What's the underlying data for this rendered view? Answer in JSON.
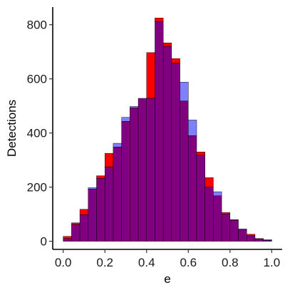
{
  "chart_data": {
    "type": "bar",
    "subtype": "overlaid-histogram",
    "xlabel": "e",
    "ylabel": "Detections",
    "xlim": [
      -0.05,
      1.05
    ],
    "ylim": [
      -30,
      865
    ],
    "xticks": [
      0.0,
      0.2,
      0.4,
      0.6,
      0.8,
      1.0
    ],
    "xtick_labels": [
      "0.0",
      "0.2",
      "0.4",
      "0.6",
      "0.8",
      "1.0"
    ],
    "yticks": [
      0,
      200,
      400,
      600,
      800
    ],
    "ytick_labels": [
      "0",
      "200",
      "400",
      "600",
      "800"
    ],
    "grid": false,
    "legend": "none",
    "bin_width": 0.04,
    "bin_centers": [
      0.02,
      0.06,
      0.1,
      0.14,
      0.18,
      0.22,
      0.26,
      0.3,
      0.34,
      0.38,
      0.42,
      0.46,
      0.5,
      0.54,
      0.58,
      0.62,
      0.66,
      0.7,
      0.74,
      0.78,
      0.82,
      0.86,
      0.9,
      0.94,
      0.98
    ],
    "series": [
      {
        "color": "#ff0000",
        "values": [
          18,
          68,
          118,
          193,
          242,
          325,
          348,
          443,
          493,
          528,
          697,
          825,
          733,
          675,
          518,
          390,
          330,
          235,
          168,
          106,
          78,
          43,
          26,
          10,
          3
        ]
      },
      {
        "color": "#8080ff",
        "values": [
          10,
          62,
          98,
          198,
          232,
          275,
          362,
          458,
          498,
          528,
          528,
          812,
          720,
          658,
          588,
          448,
          318,
          200,
          183,
          100,
          80,
          46,
          20,
          8,
          6
        ]
      }
    ],
    "overlap_color": "#800080"
  }
}
